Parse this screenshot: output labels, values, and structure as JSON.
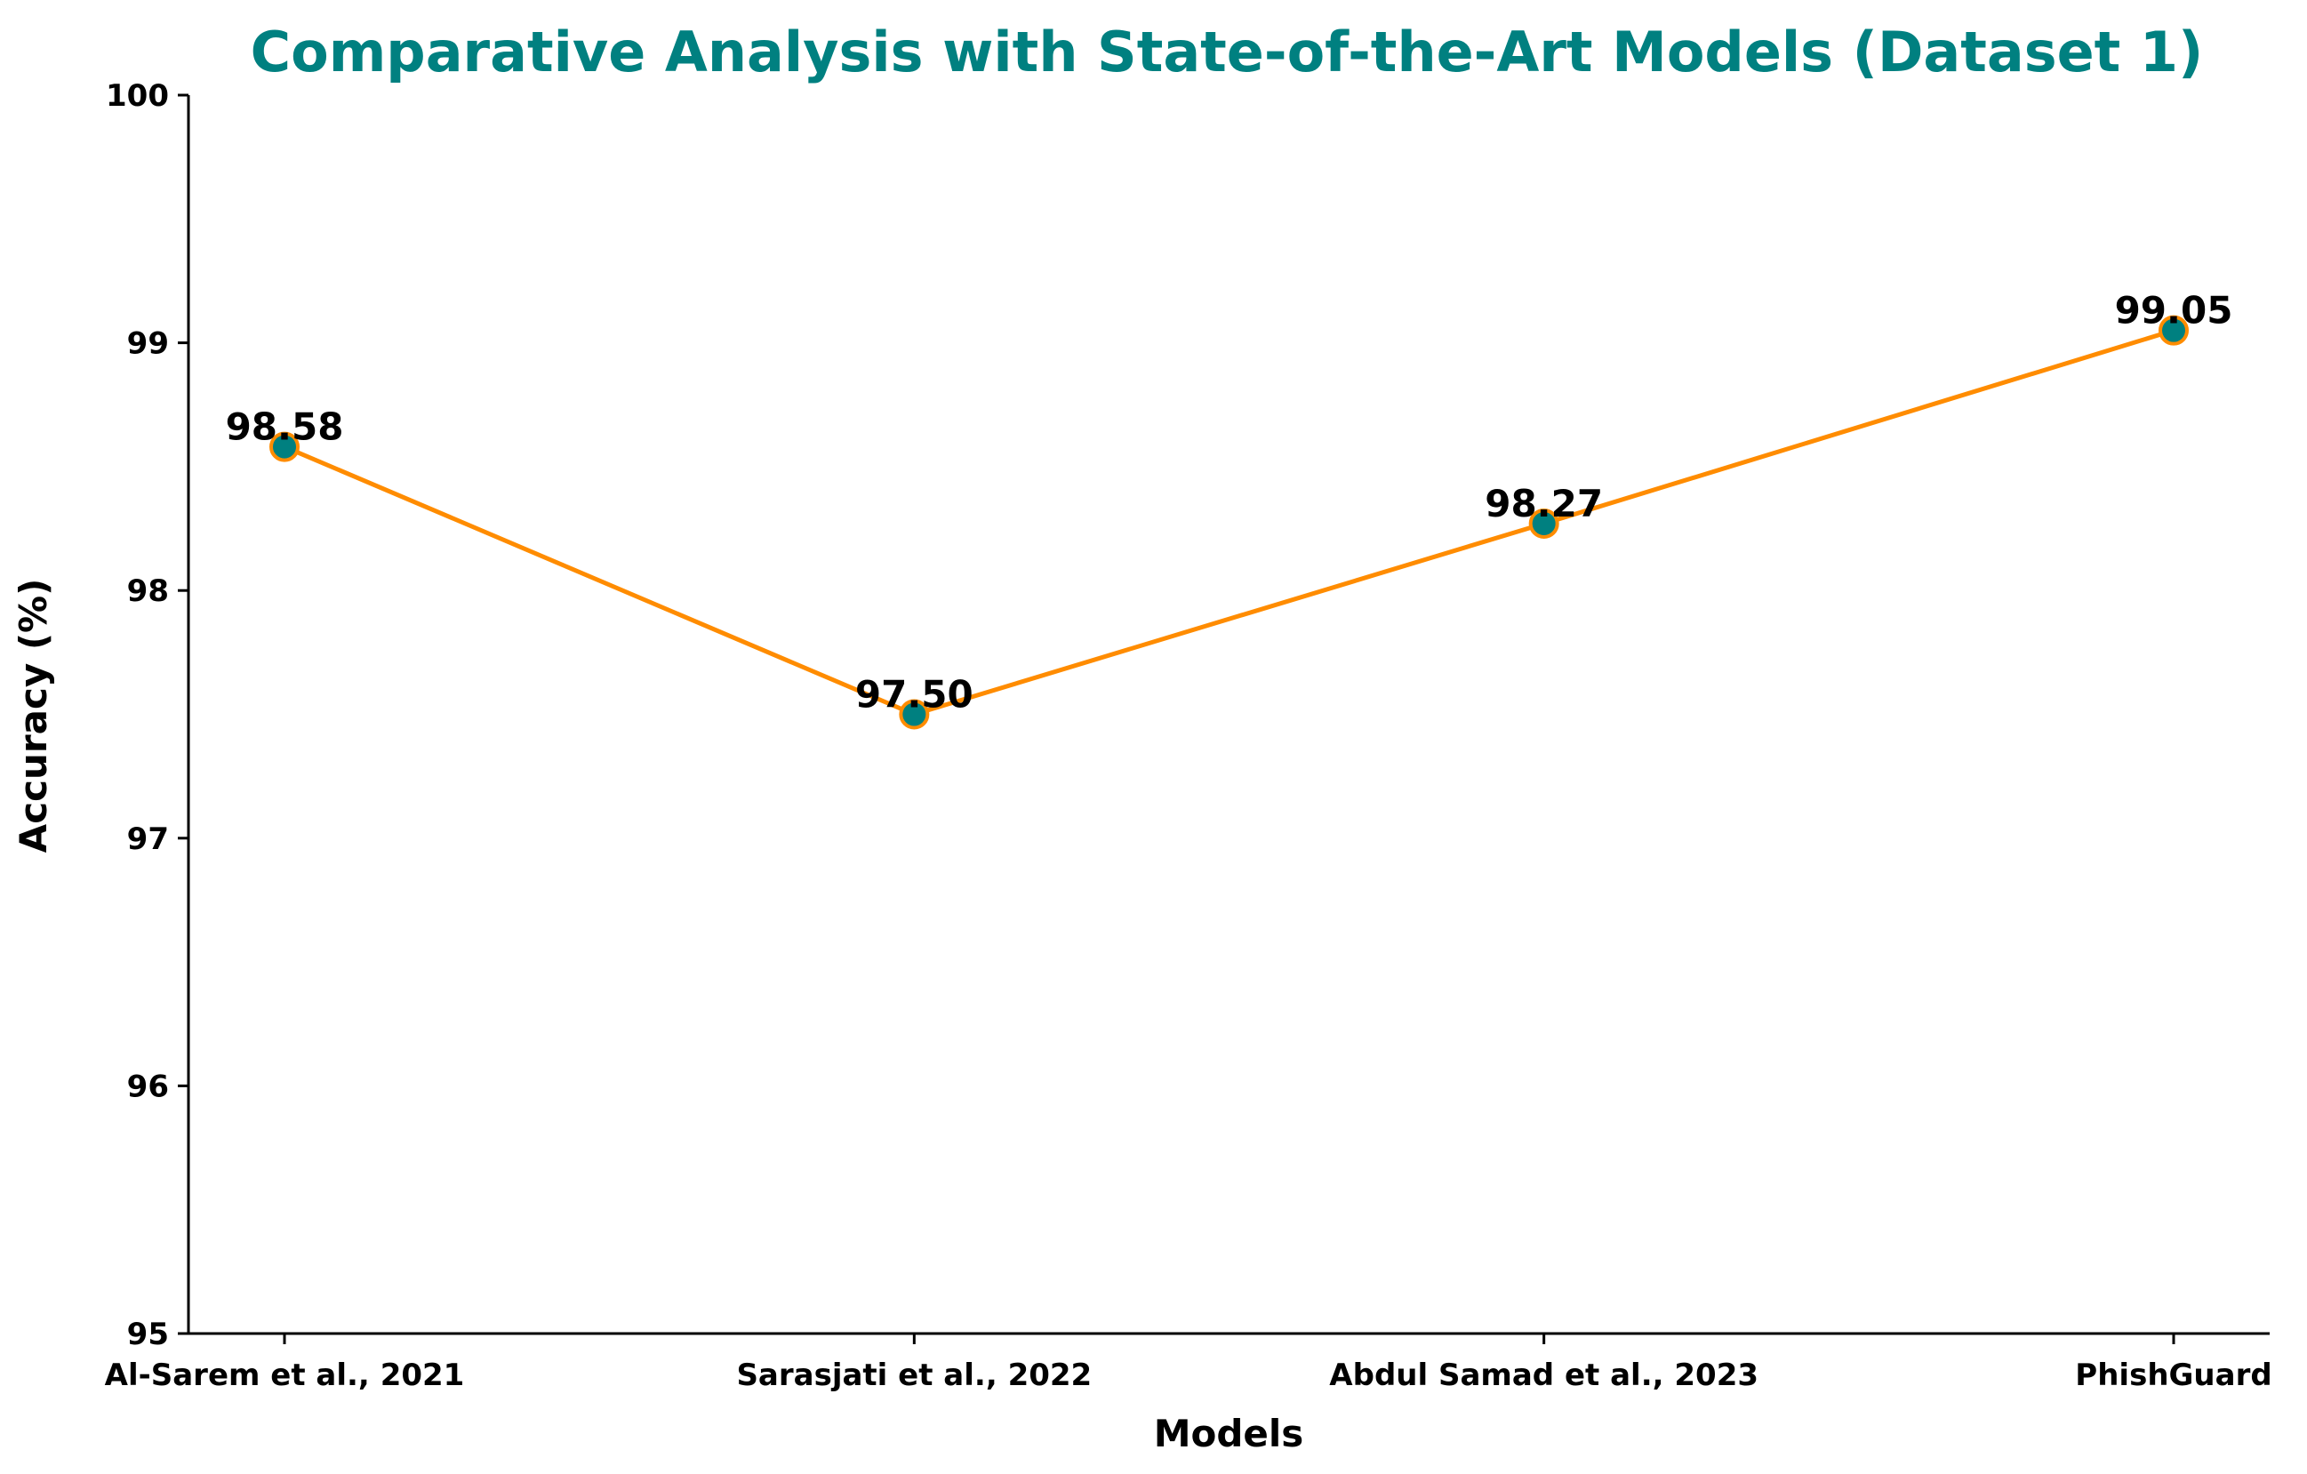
{
  "colors": {
    "title": "#008080",
    "line": "#ff8c00",
    "marker_fill": "#008080",
    "marker_edge": "#ff8c00",
    "axis": "#000000"
  },
  "chart_data": {
    "type": "line",
    "title": "Comparative Analysis with State-of-the-Art Models (Dataset 1)",
    "xlabel": "Models",
    "ylabel": "Accuracy (%)",
    "categories": [
      "Al-Sarem et al., 2021",
      "Sarasjati et al., 2022",
      "Abdul Samad et al., 2023",
      "PhishGuard"
    ],
    "series": [
      {
        "values": [
          98.58,
          97.5,
          98.27,
          99.05
        ]
      }
    ],
    "data_labels": [
      "98.58",
      "97.50",
      "98.27",
      "99.05"
    ],
    "ylim": [
      95,
      100
    ],
    "yticks": [
      95,
      96,
      97,
      98,
      99,
      100
    ],
    "grid": false,
    "legend": false
  }
}
